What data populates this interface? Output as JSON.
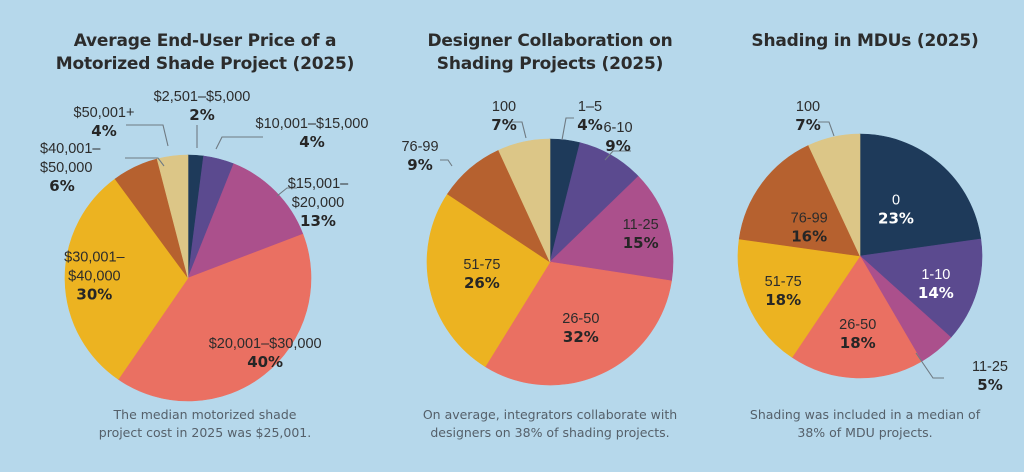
{
  "colors": {
    "background": "#b6d8eb",
    "navy": "#1e3a5a",
    "purple": "#5b4a8f",
    "magenta": "#ab508c",
    "coral": "#ea7062",
    "gold": "#ecb321",
    "rust": "#b6612f",
    "tan": "#dcc687"
  },
  "chart_data": [
    {
      "type": "pie",
      "title": "Average End-User Price of a Motorized Shade Project (2025)",
      "title_lines": [
        "Average End-User Price of a",
        "Motorized Shade Project (2025)"
      ],
      "caption_lines": [
        "The median motorized shade",
        "project cost in 2025 was $25,001."
      ],
      "slices": [
        {
          "label": "$2,501–$5,000",
          "label_lines": [
            "$2,501–$5,000"
          ],
          "value": 2,
          "display": "2%",
          "color": "#1e3a5a"
        },
        {
          "label": "$10,001–$15,000",
          "label_lines": [
            "$10,001–$15,000"
          ],
          "value": 4,
          "display": "4%",
          "color": "#5b4a8f"
        },
        {
          "label": "$15,001–$20,000",
          "label_lines": [
            "$15,001–",
            "$20,000"
          ],
          "value": 13,
          "display": "13%",
          "color": "#ab508c"
        },
        {
          "label": "$20,001–$30,000",
          "label_lines": [
            "$20,001–$30,000"
          ],
          "value": 40,
          "display": "40%",
          "color": "#ea7062"
        },
        {
          "label": "$30,001–$40,000",
          "label_lines": [
            "$30,001–",
            "$40,000"
          ],
          "value": 30,
          "display": "30%",
          "color": "#ecb321"
        },
        {
          "label": "$40,001–$50,000",
          "label_lines": [
            "$40,001–",
            "$50,000"
          ],
          "value": 6,
          "display": "6%",
          "color": "#b6612f"
        },
        {
          "label": "$50,001+",
          "label_lines": [
            "$50,001+"
          ],
          "value": 4,
          "display": "4%",
          "color": "#dcc687"
        }
      ]
    },
    {
      "type": "pie",
      "title": "Designer Collaboration on Shading Projects (2025)",
      "title_lines": [
        "Designer Collaboration on",
        "Shading Projects (2025)"
      ],
      "caption_lines": [
        "On average, integrators collaborate with",
        "designers on 38% of shading projects."
      ],
      "slices": [
        {
          "label": "1–5",
          "label_lines": [
            "1–5"
          ],
          "value": 4,
          "display": "4%",
          "color": "#1e3a5a"
        },
        {
          "label": "6-10",
          "label_lines": [
            "6-10"
          ],
          "value": 9,
          "display": "9%",
          "color": "#5b4a8f"
        },
        {
          "label": "11-25",
          "label_lines": [
            "11-25"
          ],
          "value": 15,
          "display": "15%",
          "color": "#ab508c"
        },
        {
          "label": "26-50",
          "label_lines": [
            "26-50"
          ],
          "value": 32,
          "display": "32%",
          "color": "#ea7062"
        },
        {
          "label": "51-75",
          "label_lines": [
            "51-75"
          ],
          "value": 26,
          "display": "26%",
          "color": "#ecb321"
        },
        {
          "label": "76-99",
          "label_lines": [
            "76-99"
          ],
          "value": 9,
          "display": "9%",
          "color": "#b6612f"
        },
        {
          "label": "100",
          "label_lines": [
            "100"
          ],
          "value": 7,
          "display": "7%",
          "color": "#dcc687"
        }
      ]
    },
    {
      "type": "pie",
      "title": "Shading in MDUs (2025)",
      "title_lines": [
        "Shading in MDUs (2025)"
      ],
      "caption_lines": [
        "Shading was included in a median of",
        "38% of MDU projects."
      ],
      "slices": [
        {
          "label": "0",
          "label_lines": [
            "0"
          ],
          "value": 23,
          "display": "23%",
          "color": "#1e3a5a"
        },
        {
          "label": "1-10",
          "label_lines": [
            "1-10"
          ],
          "value": 14,
          "display": "14%",
          "color": "#5b4a8f"
        },
        {
          "label": "11-25",
          "label_lines": [
            "11-25"
          ],
          "value": 5,
          "display": "5%",
          "color": "#ab508c"
        },
        {
          "label": "26-50",
          "label_lines": [
            "26-50"
          ],
          "value": 18,
          "display": "18%",
          "color": "#ea7062"
        },
        {
          "label": "51-75",
          "label_lines": [
            "51-75"
          ],
          "value": 18,
          "display": "18%",
          "color": "#ecb321"
        },
        {
          "label": "76-99",
          "label_lines": [
            "76-99"
          ],
          "value": 16,
          "display": "16%",
          "color": "#b6612f"
        },
        {
          "label": "100",
          "label_lines": [
            "100"
          ],
          "value": 7,
          "display": "7%",
          "color": "#dcc687"
        }
      ]
    }
  ]
}
